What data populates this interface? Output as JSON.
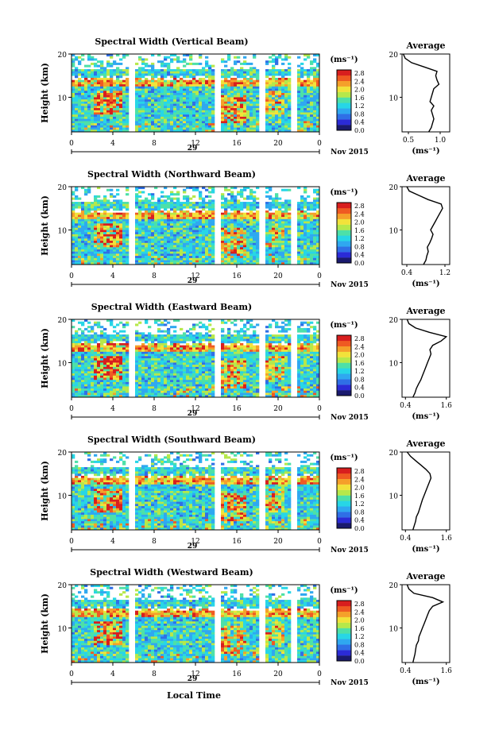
{
  "figure": {
    "xlabel": "Local Time",
    "date_label": "Nov 2015",
    "cbar_unit": "(ms⁻¹)",
    "colors": {
      "scale": [
        "#1a1a6e",
        "#2b2bd6",
        "#2f6fe6",
        "#2fa8f0",
        "#27d6e6",
        "#4de0a8",
        "#b6e84a",
        "#f2e23a",
        "#f5a02a",
        "#ef5a22",
        "#d81e1e"
      ],
      "background": "#ffffff",
      "gap": "#ffffff"
    }
  },
  "chart_data": [
    {
      "type": "heatmap",
      "title": "Spectral Width (Vertical Beam)",
      "ylabel": "Height (km)",
      "yticks": [
        "20",
        "10"
      ],
      "xticks": [
        "0",
        "4",
        "8",
        "12",
        "16",
        "20",
        "0"
      ],
      "day_label": "29",
      "ylim": [
        2,
        20
      ],
      "xlim": [
        0,
        24
      ],
      "data_gaps_hours": [
        [
          5.5,
          6.0
        ],
        [
          14.0,
          14.6
        ],
        [
          18.2,
          18.8
        ],
        [
          21.2,
          21.8
        ]
      ],
      "cbar_ticks": [
        "2.8",
        "2.4",
        "2.0",
        "1.6",
        "1.2",
        "0.8",
        "0.4",
        "0.0"
      ],
      "avg_profile": {
        "title": "Average",
        "xlabel": "(ms⁻¹)",
        "xticks": [
          "0.5",
          "1.0"
        ],
        "xlim": [
          0.4,
          1.15
        ],
        "yticks": [
          "20",
          "10"
        ],
        "height_km": [
          2,
          3,
          4,
          5,
          6,
          7,
          8,
          9,
          10,
          11,
          12,
          13,
          14,
          15,
          16,
          17,
          18,
          19,
          20
        ],
        "width": [
          0.82,
          0.86,
          0.88,
          0.9,
          0.88,
          0.86,
          0.9,
          0.84,
          0.86,
          0.88,
          0.9,
          0.98,
          0.95,
          0.93,
          0.95,
          0.75,
          0.55,
          0.45,
          0.42
        ]
      }
    },
    {
      "type": "heatmap",
      "title": "Spectral Width (Northward Beam)",
      "ylabel": "Height (km)",
      "yticks": [
        "20",
        "10"
      ],
      "xticks": [
        "0",
        "4",
        "8",
        "12",
        "16",
        "20",
        "0"
      ],
      "day_label": "29",
      "ylim": [
        2,
        20
      ],
      "xlim": [
        0,
        24
      ],
      "data_gaps_hours": [
        [
          5.5,
          6.0
        ],
        [
          14.0,
          14.6
        ],
        [
          18.2,
          18.8
        ],
        [
          21.2,
          21.8
        ]
      ],
      "cbar_ticks": [
        "2.8",
        "2.4",
        "2.0",
        "1.6",
        "1.2",
        "0.8",
        "0.4",
        "0.0"
      ],
      "avg_profile": {
        "title": "Average",
        "xlabel": "(ms⁻¹)",
        "xticks": [
          "0.4",
          "1.2"
        ],
        "xlim": [
          0.3,
          1.3
        ],
        "yticks": [
          "20",
          "10"
        ],
        "height_km": [
          2,
          3,
          4,
          5,
          6,
          7,
          8,
          9,
          10,
          11,
          12,
          13,
          14,
          15,
          16,
          17,
          18,
          19,
          20
        ],
        "width": [
          0.75,
          0.8,
          0.82,
          0.85,
          0.83,
          0.88,
          0.92,
          0.95,
          0.9,
          0.95,
          1.0,
          1.05,
          1.1,
          1.15,
          1.12,
          0.85,
          0.65,
          0.45,
          0.4
        ]
      }
    },
    {
      "type": "heatmap",
      "title": "Spectral Width (Eastward Beam)",
      "ylabel": "Height (km)",
      "yticks": [
        "20",
        "10"
      ],
      "xticks": [
        "0",
        "4",
        "8",
        "12",
        "16",
        "20",
        "0"
      ],
      "day_label": "29",
      "ylim": [
        2,
        20
      ],
      "xlim": [
        0,
        24
      ],
      "data_gaps_hours": [
        [
          5.5,
          6.0
        ],
        [
          14.0,
          14.6
        ],
        [
          18.2,
          18.8
        ],
        [
          21.2,
          21.8
        ]
      ],
      "cbar_ticks": [
        "2.8",
        "2.4",
        "2.0",
        "1.6",
        "1.2",
        "0.8",
        "0.4",
        "0.0"
      ],
      "avg_profile": {
        "title": "Average",
        "xlabel": "(ms⁻¹)",
        "xticks": [
          "0.4",
          "1.6"
        ],
        "xlim": [
          0.3,
          1.7
        ],
        "yticks": [
          "20",
          "10"
        ],
        "height_km": [
          2,
          3,
          4,
          5,
          6,
          7,
          8,
          9,
          10,
          11,
          12,
          13,
          14,
          15,
          16,
          17,
          18,
          19,
          20
        ],
        "width": [
          0.62,
          0.68,
          0.72,
          0.78,
          0.85,
          0.9,
          0.95,
          1.0,
          1.05,
          1.1,
          1.15,
          1.12,
          1.2,
          1.45,
          1.6,
          1.1,
          0.7,
          0.5,
          0.45
        ]
      }
    },
    {
      "type": "heatmap",
      "title": "Spectral Width (Southward Beam)",
      "ylabel": "Height (km)",
      "yticks": [
        "20",
        "10"
      ],
      "xticks": [
        "0",
        "4",
        "8",
        "12",
        "16",
        "20",
        "0"
      ],
      "day_label": "29",
      "ylim": [
        2,
        20
      ],
      "xlim": [
        0,
        24
      ],
      "data_gaps_hours": [
        [
          5.5,
          6.0
        ],
        [
          14.0,
          14.6
        ],
        [
          18.2,
          18.8
        ],
        [
          21.2,
          21.8
        ]
      ],
      "cbar_ticks": [
        "2.8",
        "2.4",
        "2.0",
        "1.6",
        "1.2",
        "0.8",
        "0.4",
        "0.0"
      ],
      "avg_profile": {
        "title": "Average",
        "xlabel": "(ms⁻¹)",
        "xticks": [
          "0.4",
          "1.6"
        ],
        "xlim": [
          0.3,
          1.7
        ],
        "yticks": [
          "20",
          "10"
        ],
        "height_km": [
          2,
          3,
          4,
          5,
          6,
          7,
          8,
          9,
          10,
          11,
          12,
          13,
          14,
          15,
          16,
          17,
          18,
          19,
          20
        ],
        "width": [
          0.62,
          0.66,
          0.7,
          0.72,
          0.78,
          0.82,
          0.86,
          0.9,
          0.95,
          1.0,
          1.05,
          1.1,
          1.15,
          1.12,
          1.0,
          0.85,
          0.7,
          0.55,
          0.45
        ]
      }
    },
    {
      "type": "heatmap",
      "title": "Spectral Width (Westward Beam)",
      "ylabel": "Height (km)",
      "yticks": [
        "20",
        "10"
      ],
      "xticks": [
        "0",
        "4",
        "8",
        "12",
        "16",
        "20",
        "0"
      ],
      "day_label": "29",
      "ylim": [
        2,
        20
      ],
      "xlim": [
        0,
        24
      ],
      "data_gaps_hours": [
        [
          5.5,
          6.0
        ],
        [
          14.0,
          14.6
        ],
        [
          18.2,
          18.8
        ],
        [
          21.2,
          21.8
        ]
      ],
      "cbar_ticks": [
        "2.8",
        "2.4",
        "2.0",
        "1.6",
        "1.2",
        "0.8",
        "0.4",
        "0.0"
      ],
      "avg_profile": {
        "title": "Average",
        "xlabel": "(ms⁻¹)",
        "xticks": [
          "0.4",
          "1.6"
        ],
        "xlim": [
          0.3,
          1.7
        ],
        "yticks": [
          "20",
          "10"
        ],
        "height_km": [
          2,
          3,
          4,
          5,
          6,
          7,
          8,
          9,
          10,
          11,
          12,
          13,
          14,
          15,
          16,
          17,
          18,
          19,
          20
        ],
        "width": [
          0.62,
          0.65,
          0.68,
          0.7,
          0.72,
          0.78,
          0.8,
          0.85,
          0.9,
          0.95,
          1.0,
          1.05,
          1.1,
          1.2,
          1.5,
          1.2,
          0.65,
          0.5,
          0.45
        ]
      }
    }
  ]
}
